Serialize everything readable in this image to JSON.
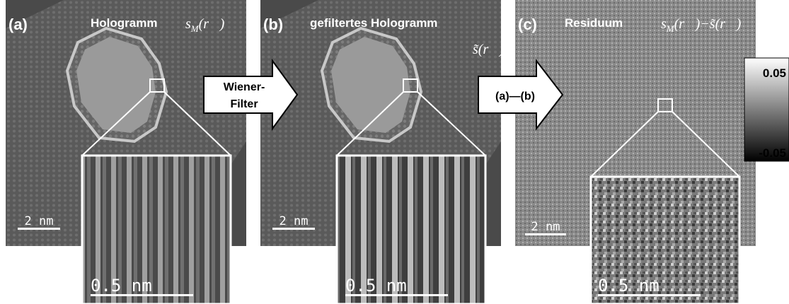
{
  "panels": [
    {
      "label": "(a)",
      "title": "Hologramm",
      "formula": [
        {
          "text": "s"
        },
        {
          "text": "M",
          "sub": true
        },
        {
          "text": "(r⃗)"
        }
      ],
      "scale_bar": "2 nm",
      "inset_scale_bar": "0.5 nm"
    },
    {
      "label": "(b)",
      "title": "gefiltertes Hologramm",
      "formula": [
        {
          "text": "s̃(r⃗)"
        }
      ],
      "scale_bar": "2 nm",
      "inset_scale_bar": "0.5 nm"
    },
    {
      "label": "(c)",
      "title": "Residuum",
      "formula": [
        {
          "text": "s"
        },
        {
          "text": "M",
          "sub": true
        },
        {
          "text": "(r⃗)−s̃(r⃗)"
        }
      ],
      "scale_bar": "2 nm",
      "inset_scale_bar": "0.5 nm"
    }
  ],
  "arrows": [
    {
      "lines": [
        "Wiener-",
        "Filter"
      ]
    },
    {
      "lines": [
        "(a)—(b)"
      ]
    }
  ],
  "colorbar": {
    "max": "0.05",
    "min": "-0.05"
  }
}
